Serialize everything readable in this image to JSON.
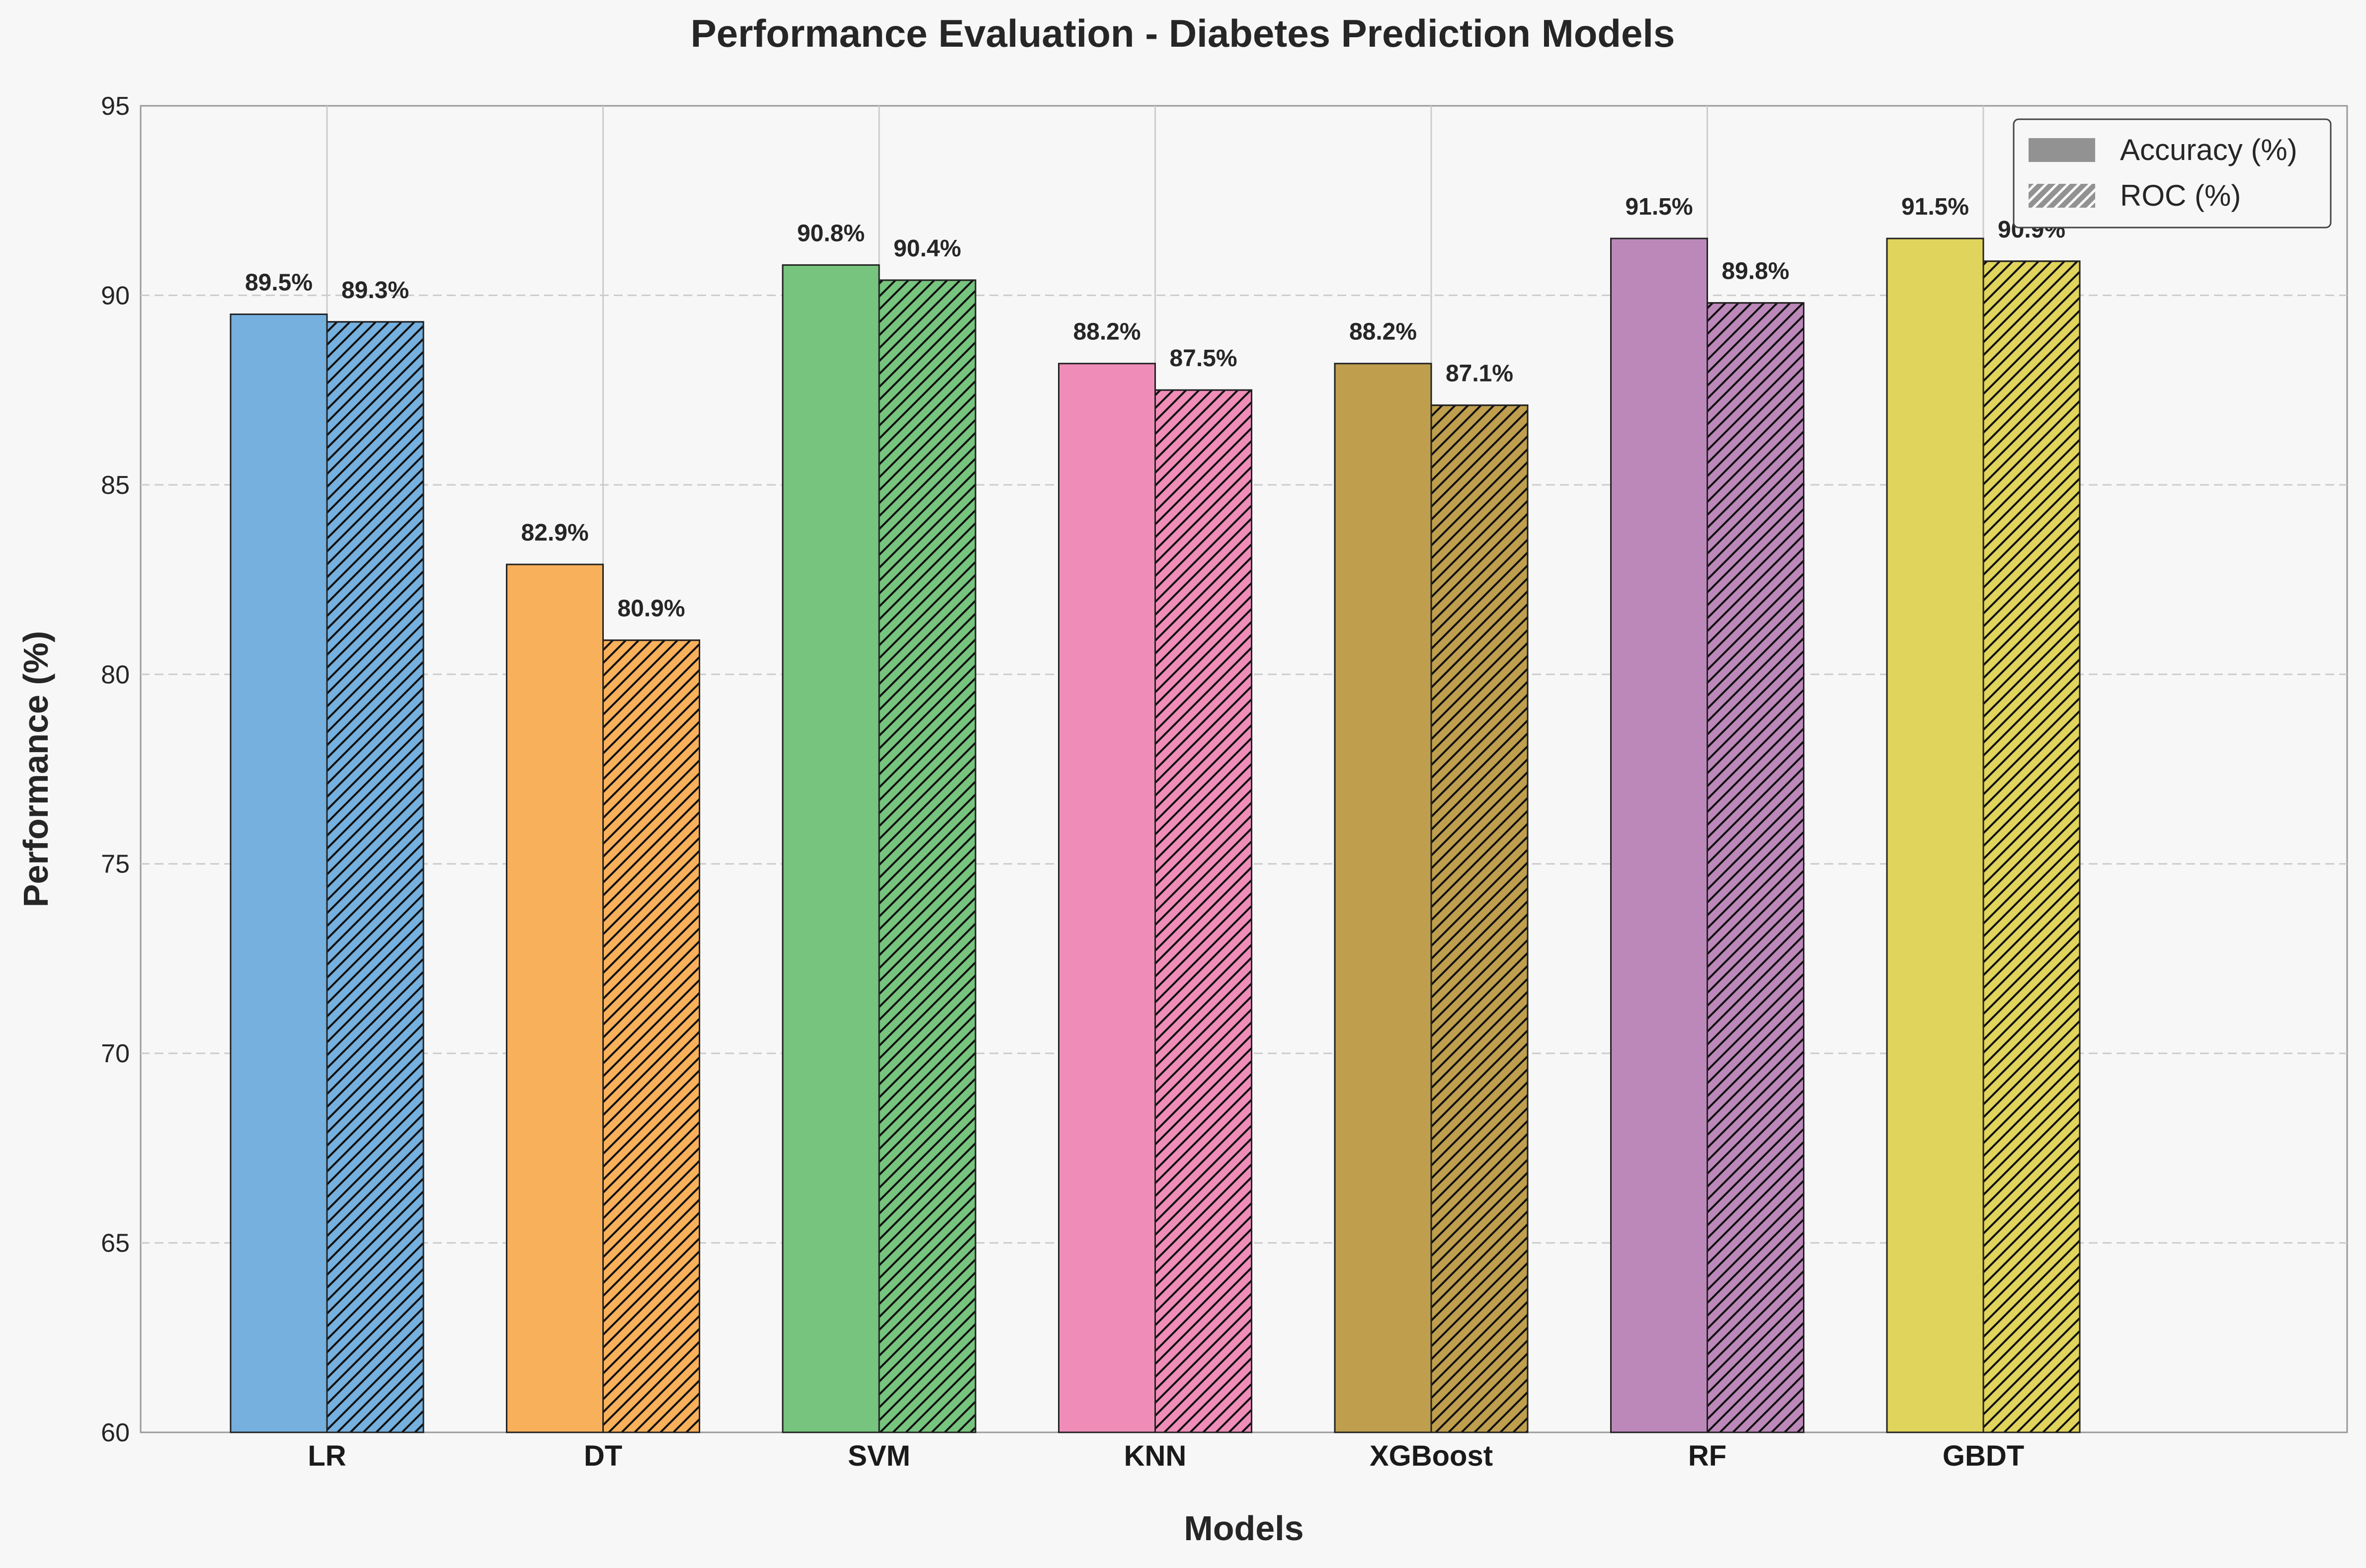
{
  "chart_data": {
    "type": "bar",
    "title": "Performance Evaluation - Diabetes Prediction Models",
    "xlabel": "Models",
    "ylabel": "Performance (%)",
    "ylim": [
      60,
      95
    ],
    "yticks": [
      "60",
      "65",
      "70",
      "75",
      "80",
      "85",
      "90",
      "95"
    ],
    "grid": true,
    "legend_position": "top-right",
    "categories": [
      "LR",
      "DT",
      "SVM",
      "KNN",
      "XGBoost",
      "RF",
      "GBDT"
    ],
    "colors": [
      "#75b0de",
      "#f8b05b",
      "#77c47e",
      "#ef8db8",
      "#bf9f4e",
      "#bc88ba",
      "#e0d45c"
    ],
    "series": [
      {
        "name": "Accuracy (%)",
        "pattern": "solid",
        "values": [
          89.5,
          82.9,
          90.8,
          88.2,
          88.2,
          91.5,
          91.5
        ],
        "labels": [
          "89.5%",
          "82.9%",
          "90.8%",
          "88.2%",
          "88.2%",
          "91.5%",
          "91.5%"
        ]
      },
      {
        "name": "ROC (%)",
        "pattern": "hatched",
        "values": [
          89.3,
          80.9,
          90.4,
          87.5,
          87.1,
          89.8,
          90.9
        ],
        "labels": [
          "89.3%",
          "80.9%",
          "90.4%",
          "87.5%",
          "87.1%",
          "89.8%",
          "90.9%"
        ]
      }
    ]
  }
}
